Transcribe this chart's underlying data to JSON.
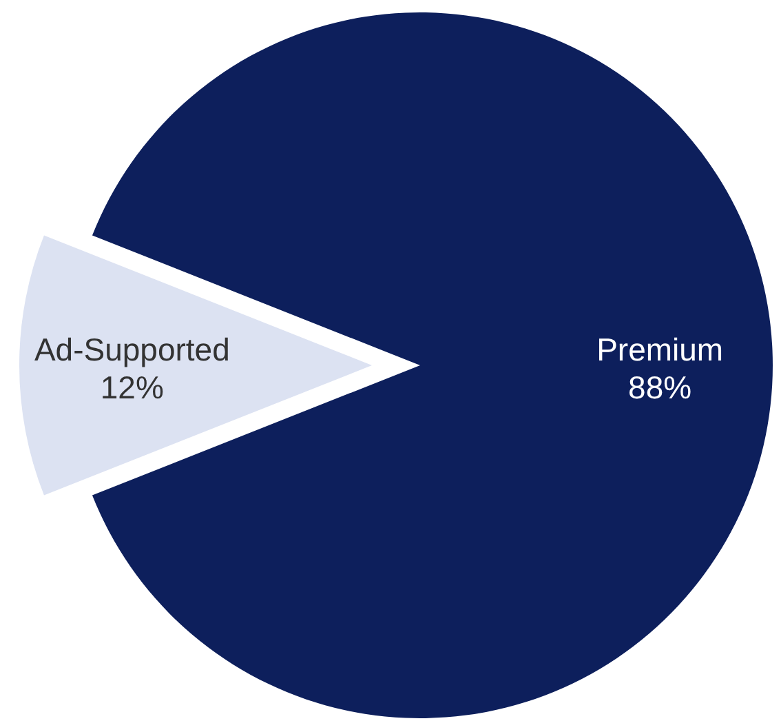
{
  "chart_data": {
    "type": "pie",
    "categories": [
      "Premium",
      "Ad-Supported"
    ],
    "values": [
      88,
      12
    ],
    "colors": [
      "#0d1f5c",
      "#dce2f2"
    ],
    "value_labels": [
      "88%",
      "12%"
    ]
  }
}
